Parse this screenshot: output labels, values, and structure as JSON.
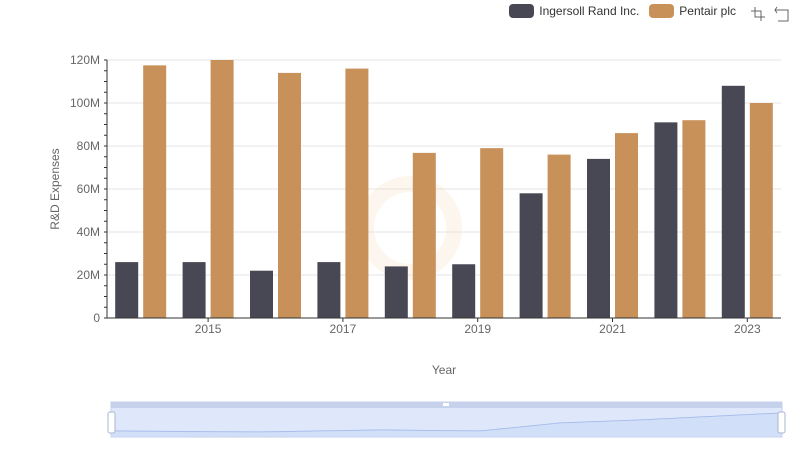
{
  "colors": {
    "ingersoll": "#484854",
    "pentair": "#c8915a",
    "grid": "#e6e6e6",
    "axis": "#333333",
    "zoom_fill": "#dfe8fb",
    "zoom_border": "#c6d2ec",
    "zoom_line": "#9bb3e8"
  },
  "toolbox": {
    "zoom_icon": "zoom-icon",
    "restore_icon": "restore-icon"
  },
  "chart_data": {
    "type": "bar",
    "xlabel": "Year",
    "ylabel": "R&D Expenses",
    "ylim": [
      0,
      120000000
    ],
    "yticks": [
      "0",
      "20M",
      "40M",
      "60M",
      "80M",
      "100M",
      "120M"
    ],
    "x": [
      2014,
      2015,
      2016,
      2017,
      2018,
      2019,
      2020,
      2021,
      2022,
      2023
    ],
    "x_tick_labels": [
      "2015",
      "2017",
      "2019",
      "2021",
      "2023"
    ],
    "legend_position": "top-right",
    "series": [
      {
        "name": "Ingersoll Rand Inc.",
        "color": "#484854",
        "values": [
          26000000,
          26000000,
          22000000,
          26000000,
          24000000,
          25000000,
          58000000,
          74000000,
          91000000,
          108000000
        ]
      },
      {
        "name": "Pentair plc",
        "color": "#c8915a",
        "values": [
          117500000,
          120000000,
          114000000,
          116000000,
          76800000,
          79000000,
          76000000,
          86000000,
          92000000,
          100000000
        ]
      }
    ]
  }
}
